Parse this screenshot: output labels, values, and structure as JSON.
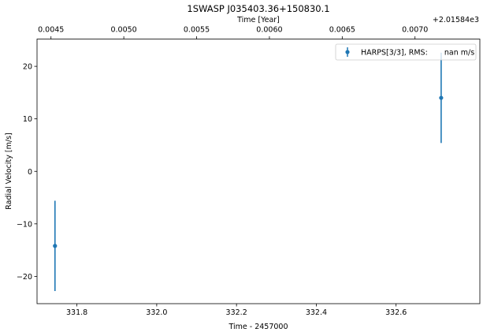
{
  "chart_data": {
    "type": "scatter",
    "title": "1SWASP J035403.36+150830.1",
    "xlabel": "Time - 2457000",
    "ylabel": "Radial Velocity [m/s]",
    "top_xlabel": "Time [Year]",
    "top_offset_text": "+2.01584e3",
    "xlim": [
      331.7,
      332.81
    ],
    "ylim": [
      -25.2,
      25.2
    ],
    "x_ticks": [
      331.8,
      332.0,
      332.2,
      332.4,
      332.6
    ],
    "x_tick_labels": [
      "331.8",
      "332.0",
      "332.2",
      "332.4",
      "332.6"
    ],
    "y_ticks": [
      -20,
      -10,
      0,
      10,
      20
    ],
    "y_tick_labels": [
      "−20",
      "−10",
      "0",
      "10",
      "20"
    ],
    "top_ticks_bottom_units": [
      331.735,
      331.9175,
      332.1,
      332.2825,
      332.465,
      332.6475
    ],
    "top_tick_labels": [
      "0.0045",
      "0.0050",
      "0.0055",
      "0.0060",
      "0.0065",
      "0.0070"
    ],
    "grid": false,
    "legend_position": "top-right",
    "series": [
      {
        "name": "HARPS[3/3], RMS:       nan m/s",
        "color": "#1f77b4",
        "x": [
          331.745,
          332.713
        ],
        "y": [
          -14.2,
          14.0
        ],
        "yerr": [
          8.6,
          8.6
        ]
      }
    ]
  }
}
